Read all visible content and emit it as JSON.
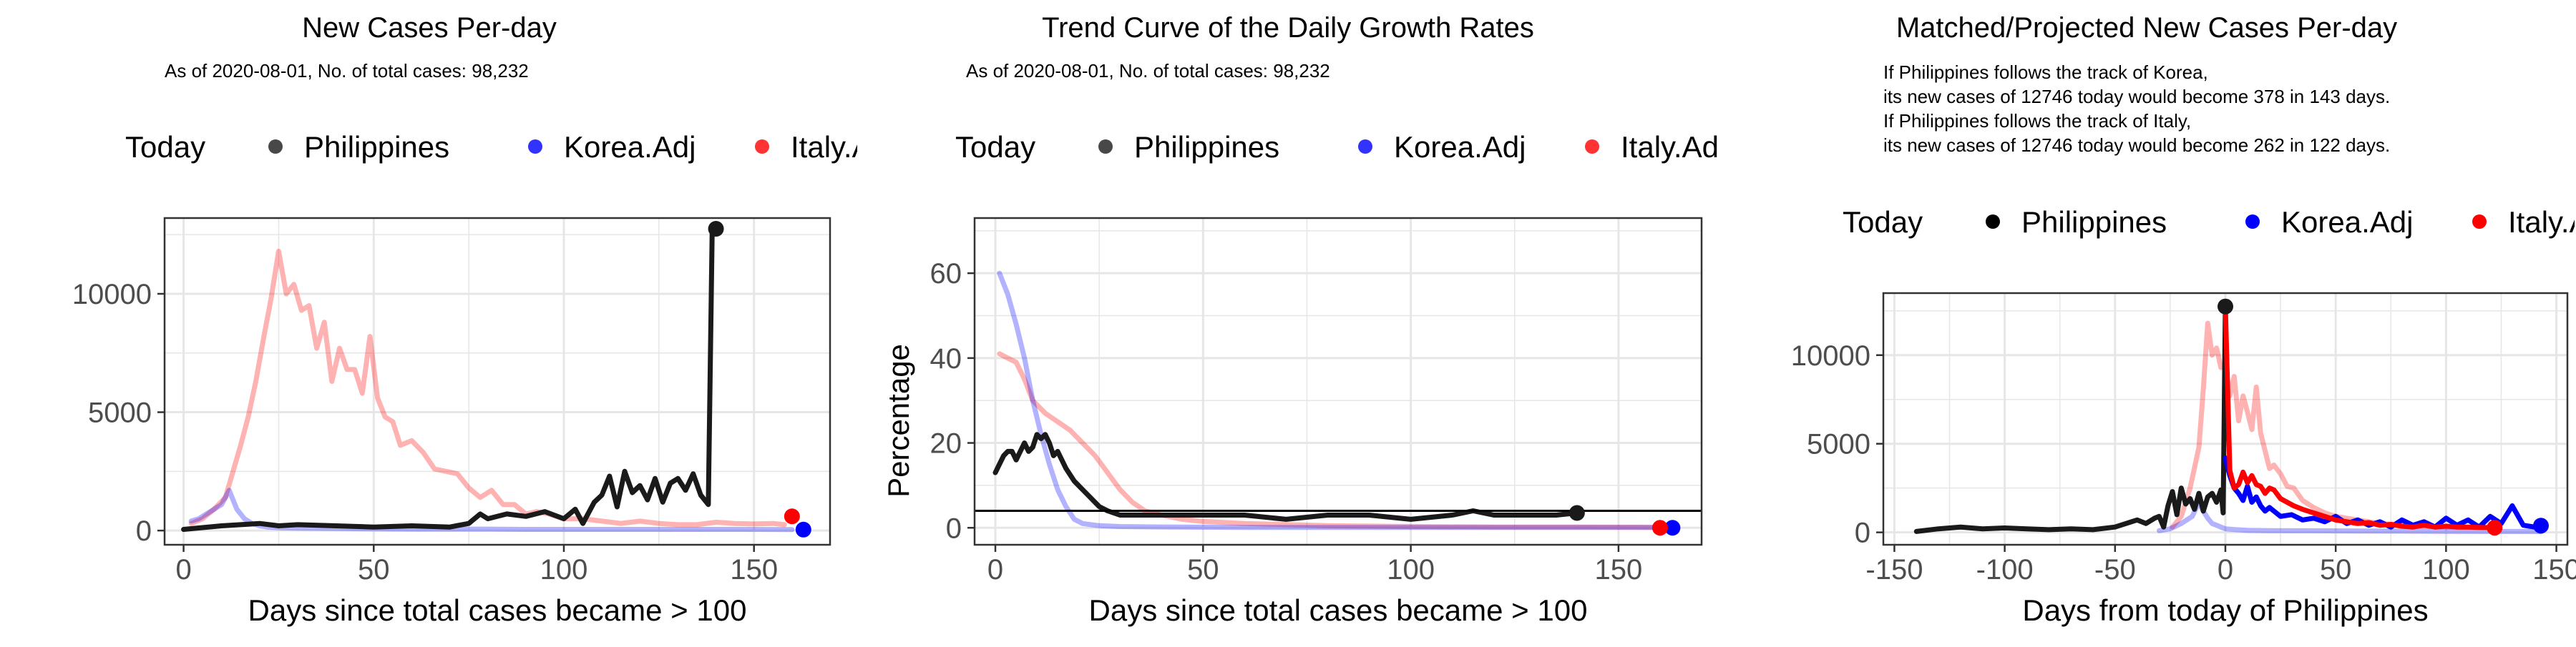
{
  "colors": {
    "philippines": "#1a1a1a",
    "korea": "#0000ff",
    "italy": "#ff0000",
    "grid": "#e6e6e6",
    "panel_border": "#333333"
  },
  "chart_data": [
    {
      "type": "line",
      "title": "New Cases Per-day",
      "subtitle": "As of 2020-08-01, No. of total cases: 98,232",
      "legend": {
        "position": "top",
        "title": "Today",
        "items": [
          {
            "label": "Philippines",
            "color": "#1a1a1a"
          },
          {
            "label": "Korea.Adj",
            "color": "#0000ff"
          },
          {
            "label": "Italy.Adj",
            "color": "#ff0000"
          }
        ]
      },
      "xlabel": "Days since total cases became > 100",
      "ylabel": "",
      "xlim": [
        -5,
        170
      ],
      "ylim": [
        -600,
        13200
      ],
      "xticks": [
        0,
        50,
        100,
        150
      ],
      "yticks": [
        0,
        5000,
        10000
      ],
      "ytick_labels": [
        "0",
        "5000",
        "10000"
      ],
      "grid": true,
      "series": [
        {
          "name": "Italy.Adj",
          "color": "#ff0000",
          "opacity": 0.3,
          "x": [
            2,
            5,
            8,
            11,
            13,
            15,
            17,
            19,
            21,
            23,
            25,
            27,
            29,
            31,
            33,
            35,
            37,
            39,
            41,
            43,
            45,
            47,
            49,
            51,
            53,
            55,
            57,
            60,
            63,
            66,
            69,
            72,
            75,
            78,
            81,
            84,
            87,
            90,
            93,
            96,
            100,
            105,
            110,
            115,
            120,
            125,
            130,
            135,
            140,
            145,
            150,
            155,
            158
          ],
          "y": [
            300,
            500,
            900,
            1400,
            2500,
            3600,
            4800,
            6300,
            8100,
            9800,
            11800,
            10000,
            10400,
            9300,
            9500,
            7700,
            8800,
            6300,
            7700,
            6800,
            6800,
            5800,
            8200,
            5600,
            4800,
            4600,
            3600,
            3800,
            3300,
            2600,
            2500,
            2400,
            1800,
            1400,
            1700,
            1100,
            1100,
            700,
            800,
            700,
            500,
            500,
            400,
            300,
            400,
            300,
            250,
            250,
            350,
            300,
            280,
            300,
            250
          ]
        },
        {
          "name": "Korea.Adj",
          "color": "#0000ff",
          "opacity": 0.3,
          "x": [
            2,
            4,
            6,
            8,
            10,
            12,
            14,
            16,
            18,
            20,
            22,
            25,
            30,
            40,
            50,
            60,
            70,
            80,
            90,
            100,
            110,
            120,
            130,
            140,
            150,
            160
          ],
          "y": [
            400,
            500,
            700,
            900,
            1100,
            1700,
            900,
            500,
            300,
            200,
            150,
            120,
            100,
            90,
            70,
            60,
            60,
            60,
            50,
            50,
            50,
            50,
            50,
            50,
            50,
            40
          ]
        },
        {
          "name": "Philippines",
          "color": "#1a1a1a",
          "opacity": 1,
          "x": [
            0,
            10,
            20,
            25,
            30,
            40,
            50,
            60,
            70,
            75,
            78,
            80,
            85,
            90,
            95,
            100,
            103,
            105,
            108,
            110,
            112,
            114,
            116,
            118,
            120,
            122,
            124,
            126,
            128,
            130,
            132,
            134,
            136,
            138,
            139,
            140
          ],
          "y": [
            50,
            200,
            300,
            200,
            250,
            200,
            150,
            200,
            150,
            300,
            700,
            500,
            700,
            600,
            800,
            500,
            900,
            300,
            1200,
            1500,
            2300,
            1000,
            2500,
            1600,
            1900,
            1300,
            2200,
            1200,
            2000,
            2200,
            1700,
            2400,
            1500,
            1100,
            12700,
            12746
          ]
        }
      ],
      "points": [
        {
          "series": "Philippines",
          "x": 140,
          "y": 12746
        },
        {
          "series": "Korea.Adj",
          "x": 163,
          "y": 40
        },
        {
          "series": "Italy.Adj",
          "x": 160,
          "y": 600
        }
      ]
    },
    {
      "type": "line",
      "title": "Trend Curve of the Daily Growth Rates",
      "subtitle": "As of 2020-08-01, No. of total cases: 98,232",
      "legend": {
        "position": "top",
        "title": "Today",
        "items": [
          {
            "label": "Philippines",
            "color": "#1a1a1a"
          },
          {
            "label": "Korea.Adj",
            "color": "#0000ff"
          },
          {
            "label": "Italy.Adj",
            "color": "#ff0000"
          }
        ]
      },
      "xlabel": "Days since total cases became > 100",
      "ylabel": "Percentage",
      "xlim": [
        -5,
        170
      ],
      "ylim": [
        -4,
        73
      ],
      "xticks": [
        0,
        50,
        100,
        150
      ],
      "yticks": [
        0,
        20,
        40,
        60
      ],
      "ytick_labels": [
        "0",
        "20",
        "40",
        "60"
      ],
      "hline": 4,
      "grid": true,
      "series": [
        {
          "name": "Italy.Adj",
          "color": "#ff0000",
          "opacity": 0.3,
          "x": [
            1,
            3,
            5,
            7,
            9,
            12,
            15,
            18,
            21,
            24,
            27,
            30,
            33,
            36,
            40,
            45,
            50,
            60,
            80,
            100,
            120,
            140,
            160
          ],
          "y": [
            41,
            40,
            39,
            35,
            30,
            27,
            25,
            23,
            20,
            17,
            13,
            9,
            6,
            4,
            3,
            2,
            1.5,
            1,
            0.5,
            0.3,
            0.2,
            0.2,
            0.1
          ]
        },
        {
          "name": "Korea.Adj",
          "color": "#0000ff",
          "opacity": 0.3,
          "x": [
            1,
            3,
            5,
            7,
            9,
            11,
            13,
            15,
            17,
            19,
            21,
            25,
            30,
            40,
            60,
            100,
            130,
            163
          ],
          "y": [
            60,
            55,
            48,
            40,
            30,
            22,
            15,
            9,
            5,
            2,
            1,
            0.5,
            0.3,
            0.2,
            0.1,
            0.1,
            0.1,
            0.1
          ]
        },
        {
          "name": "Philippines",
          "color": "#1a1a1a",
          "opacity": 1,
          "x": [
            0,
            1,
            2,
            3,
            4,
            5,
            6,
            7,
            8,
            9,
            10,
            11,
            12,
            13,
            14,
            15,
            17,
            19,
            21,
            23,
            25,
            27,
            30,
            35,
            40,
            50,
            60,
            70,
            80,
            90,
            100,
            110,
            115,
            120,
            125,
            130,
            135,
            140
          ],
          "y": [
            13,
            15,
            17,
            18,
            18,
            16,
            18,
            20,
            18,
            19,
            22,
            21,
            22,
            20,
            17,
            18,
            14,
            11,
            9,
            7,
            5,
            4,
            3,
            3,
            3,
            3,
            3,
            2,
            3,
            3,
            2,
            3,
            4,
            3,
            3,
            3,
            3,
            3.5
          ]
        }
      ],
      "points": [
        {
          "series": "Philippines",
          "x": 140,
          "y": 3.5
        },
        {
          "series": "Korea.Adj",
          "x": 163,
          "y": 0
        },
        {
          "series": "Italy.Adj",
          "x": 160,
          "y": 0
        }
      ]
    },
    {
      "type": "line",
      "title": "Matched/Projected New Cases Per-day",
      "subtitle": "",
      "notes": [
        "If Philippines follows the track of Korea,",
        "its new cases of 12746 today would become 378 in 143 days.",
        "If Philippines follows the track of Italy,",
        "its new cases of 12746 today would become 262 in 122 days."
      ],
      "legend": {
        "position": "top",
        "title": "Today",
        "items": [
          {
            "label": "Philippines",
            "color": "#000000"
          },
          {
            "label": "Korea.Adj",
            "color": "#0000ff"
          },
          {
            "label": "Italy.Adj",
            "color": "#ff0000"
          }
        ]
      },
      "xlabel": "Days from today of Philippines",
      "ylabel": "",
      "xlim": [
        -155,
        155
      ],
      "ylim": [
        -700,
        13500
      ],
      "xticks": [
        -150,
        -100,
        -50,
        0,
        50,
        100,
        150
      ],
      "xtick_labels": [
        "-150",
        "-100",
        "-50",
        "0",
        "50",
        "100",
        "150"
      ],
      "yticks": [
        0,
        5000,
        10000
      ],
      "ytick_labels": [
        "0",
        "5000",
        "10000"
      ],
      "grid": true,
      "series": [
        {
          "name": "Italy.Adj (past)",
          "color": "#ff0000",
          "opacity": 0.3,
          "x": [
            -24,
            -20,
            -16,
            -12,
            -10,
            -8,
            -6,
            -4,
            -2,
            0,
            2,
            4,
            6,
            8,
            10,
            12,
            14,
            16,
            18,
            20,
            22,
            25,
            28,
            31,
            35,
            40,
            45,
            50,
            60,
            70,
            80,
            90,
            100,
            110,
            120,
            122
          ],
          "y": [
            300,
            900,
            2500,
            4800,
            8100,
            11800,
            10000,
            10400,
            9300,
            9500,
            7700,
            8800,
            6300,
            7700,
            6800,
            5800,
            8200,
            5600,
            4600,
            3600,
            3800,
            3300,
            2600,
            2500,
            1800,
            1400,
            1100,
            900,
            700,
            500,
            400,
            350,
            300,
            300,
            280,
            262
          ]
        },
        {
          "name": "Korea.Adj (past)",
          "color": "#0000ff",
          "opacity": 0.3,
          "x": [
            -30,
            -25,
            -20,
            -15,
            -12,
            -10,
            -8,
            -6,
            -4,
            -2,
            0,
            5,
            10,
            20,
            40,
            60,
            80,
            100,
            120,
            140,
            143
          ],
          "y": [
            100,
            200,
            500,
            900,
            1700,
            1200,
            800,
            500,
            400,
            300,
            200,
            150,
            120,
            100,
            90,
            80,
            70,
            60,
            50,
            50,
            40
          ]
        },
        {
          "name": "Philippines",
          "color": "#1a1a1a",
          "opacity": 1,
          "x": [
            -140,
            -130,
            -120,
            -110,
            -100,
            -90,
            -80,
            -70,
            -60,
            -50,
            -40,
            -36,
            -32,
            -30,
            -28,
            -26,
            -24,
            -22,
            -20,
            -18,
            -16,
            -14,
            -12,
            -10,
            -8,
            -6,
            -4,
            -2,
            -1,
            0
          ],
          "y": [
            50,
            200,
            300,
            200,
            250,
            200,
            150,
            200,
            150,
            300,
            700,
            500,
            800,
            900,
            300,
            1500,
            2300,
            1000,
            2500,
            1600,
            1900,
            1300,
            2200,
            1200,
            2000,
            2200,
            1700,
            2400,
            1100,
            12746
          ]
        },
        {
          "name": "Korea.Adj",
          "color": "#0000ff",
          "opacity": 1,
          "x": [
            0,
            2,
            4,
            6,
            8,
            10,
            12,
            14,
            16,
            18,
            20,
            25,
            30,
            35,
            40,
            45,
            50,
            55,
            60,
            65,
            70,
            75,
            80,
            85,
            90,
            95,
            100,
            105,
            110,
            115,
            120,
            125,
            130,
            135,
            140,
            143
          ],
          "y": [
            4200,
            3200,
            2500,
            2200,
            1800,
            2600,
            1700,
            2000,
            1500,
            1200,
            1400,
            900,
            1000,
            700,
            800,
            600,
            900,
            500,
            700,
            400,
            600,
            300,
            700,
            400,
            600,
            300,
            800,
            400,
            700,
            300,
            900,
            500,
            1500,
            400,
            300,
            378
          ]
        },
        {
          "name": "Italy.Adj",
          "color": "#ff0000",
          "opacity": 1,
          "x": [
            0,
            2,
            4,
            6,
            8,
            10,
            12,
            14,
            16,
            18,
            20,
            22,
            25,
            28,
            31,
            35,
            40,
            45,
            50,
            55,
            60,
            65,
            70,
            75,
            80,
            85,
            90,
            95,
            100,
            105,
            110,
            115,
            120,
            122
          ],
          "y": [
            12746,
            3500,
            2500,
            2700,
            3400,
            2800,
            3200,
            2700,
            2600,
            2200,
            2500,
            2400,
            1900,
            1700,
            1500,
            1300,
            1100,
            900,
            700,
            600,
            500,
            550,
            400,
            450,
            350,
            300,
            400,
            300,
            350,
            300,
            300,
            280,
            270,
            262
          ]
        }
      ],
      "points": [
        {
          "series": "Philippines",
          "x": 0,
          "y": 12746
        },
        {
          "series": "Korea.Adj",
          "x": 143,
          "y": 378
        },
        {
          "series": "Italy.Adj",
          "x": 122,
          "y": 262
        }
      ]
    }
  ]
}
